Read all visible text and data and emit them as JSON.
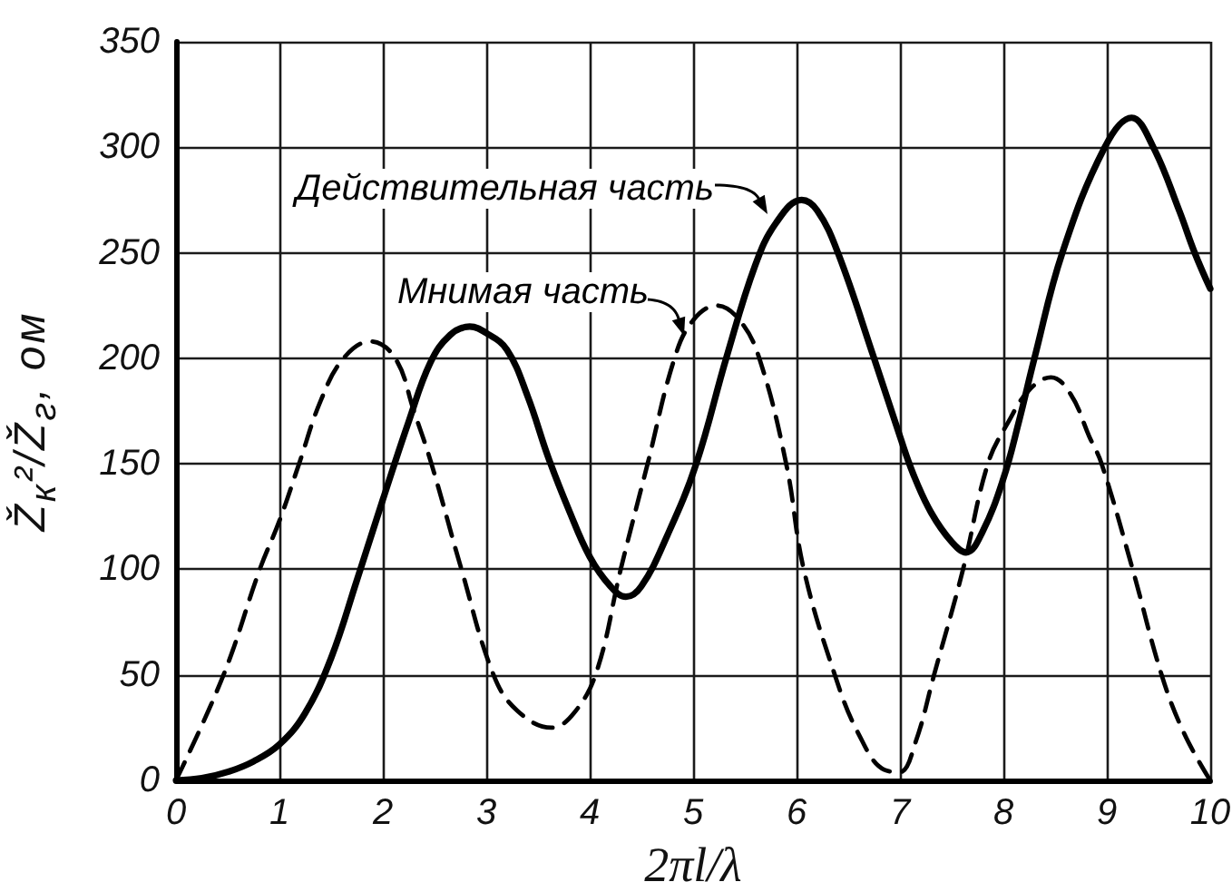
{
  "chart_data": {
    "type": "line",
    "xlabel": "2πl/λ",
    "ylabel": "Ž$_{к}$²/Ž$_{г}$, ом",
    "xlim": [
      0,
      10
    ],
    "xticks": [
      0,
      1,
      2,
      3,
      4,
      5,
      6,
      7,
      8,
      9,
      10
    ],
    "ylim": [
      0,
      350
    ],
    "yticks": [
      0,
      50,
      100,
      150,
      200,
      250,
      300,
      350
    ],
    "grid": true,
    "marker": "none",
    "legend": "top left",
    "series": [
      {
        "name": "Действительная часть",
        "color": "#000000",
        "line_style": "solid",
        "x": [
          0,
          0.25,
          0.5,
          0.75,
          1,
          1.25,
          1.5,
          1.75,
          2,
          2.25,
          2.46,
          2.65,
          2.84,
          3,
          3.2,
          3.4,
          3.6,
          3.8,
          4,
          4.2,
          4.35,
          4.5,
          4.75,
          5.03,
          5.32,
          5.6,
          5.8,
          6.05,
          6.2,
          6.4,
          6.75,
          7,
          7.13,
          7.3,
          7.5,
          7.64,
          7.8,
          8,
          8.15,
          8.3,
          8.57,
          8.98,
          9.24,
          9.45,
          9.7,
          9.85,
          10
        ],
        "values": [
          0,
          1,
          4,
          9,
          17,
          32,
          58,
          95,
          133,
          170,
          198,
          211,
          215,
          212,
          204,
          182,
          153,
          128,
          106,
          92,
          87,
          92,
          116,
          150,
          200,
          244,
          264,
          275,
          270,
          250,
          200,
          163,
          145,
          127,
          113,
          108,
          118,
          143,
          170,
          200,
          250,
          300,
          314,
          300,
          270,
          250,
          233
        ]
      },
      {
        "name": "Мнимая часть",
        "color": "#000000",
        "line_style": "dashed",
        "x": [
          0,
          0.46,
          0.81,
          1,
          1.19,
          1.4,
          1.62,
          1.88,
          2.12,
          2.3,
          2.47,
          2.76,
          3.07,
          3.3,
          3.63,
          3.85,
          4.07,
          4.3,
          4.56,
          4.82,
          5,
          5.23,
          5.45,
          5.64,
          5.9,
          6.07,
          6.37,
          6.6,
          6.85,
          7,
          7.15,
          7.33,
          7.61,
          7.85,
          8.05,
          8.25,
          8.46,
          8.65,
          8.83,
          8.95,
          9.25,
          9.53,
          9.75,
          10
        ],
        "values": [
          0,
          50,
          100,
          123,
          150,
          180,
          200,
          208,
          200,
          175,
          150,
          100,
          50,
          33,
          25,
          32,
          52,
          100,
          150,
          200,
          218,
          225,
          218,
          200,
          150,
          100,
          50,
          22,
          5,
          4,
          18,
          50,
          100,
          150,
          170,
          185,
          191,
          183,
          163,
          150,
          100,
          50,
          22,
          0
        ]
      }
    ]
  }
}
